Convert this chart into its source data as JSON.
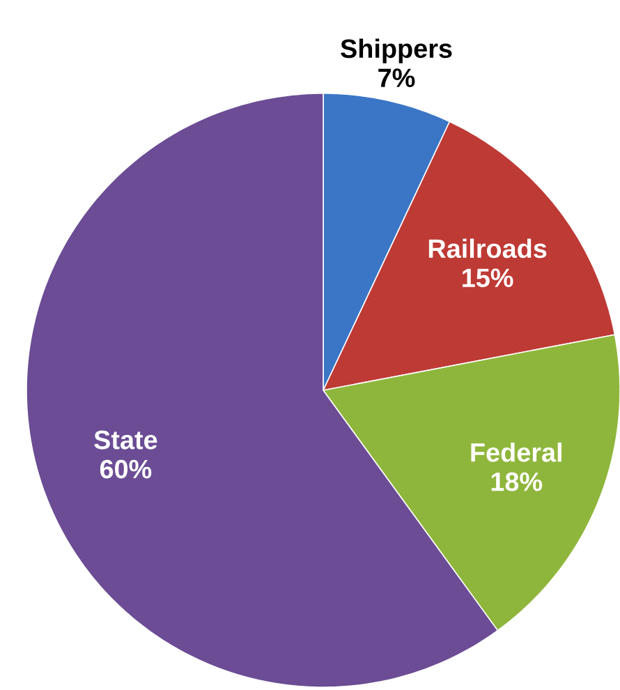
{
  "chart_data": {
    "type": "pie",
    "categories": [
      "Shippers",
      "Railroads",
      "Federal",
      "State"
    ],
    "values": [
      7,
      15,
      18,
      60
    ],
    "value_labels": [
      "7%",
      "15%",
      "18%",
      "60%"
    ],
    "colors": [
      "#3b76c6",
      "#be3a35",
      "#8fb63c",
      "#6b4c95"
    ]
  }
}
